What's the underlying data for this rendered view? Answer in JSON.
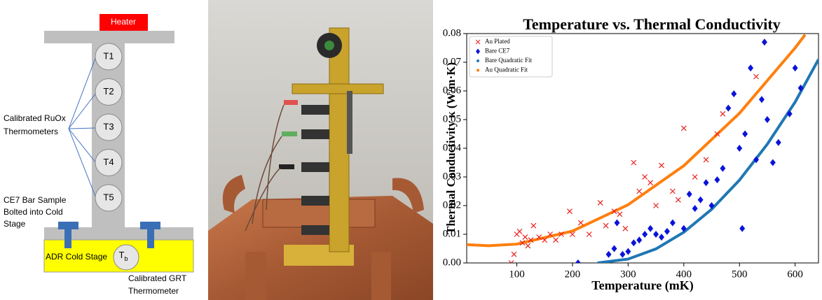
{
  "diagram": {
    "heater": "Heater",
    "thermometers": [
      "T1",
      "T2",
      "T3",
      "T4",
      "T5"
    ],
    "ruox_label": [
      "Calibrated RuOx",
      "Thermometers"
    ],
    "sample_label": [
      "CE7 Bar Sample",
      "Bolted into Cold",
      "Stage"
    ],
    "cold_stage": "ADR Cold Stage",
    "tb": {
      "label": "T",
      "subscript": "b"
    },
    "grt_label": [
      "Calibrated GRT",
      "Thermometer"
    ]
  },
  "chart_data": {
    "type": "scatter",
    "title": "Temperature vs. Thermal Conductivity",
    "x_label": "Temperature (mK)",
    "y_label": "Thermal Conductivity κ (W/m·K)",
    "xlim": [
      10,
      642
    ],
    "ylim": [
      0,
      0.08
    ],
    "xticks": [
      100,
      200,
      300,
      400,
      500,
      600
    ],
    "yticks": [
      {
        "value": 0,
        "label": "0.00"
      },
      {
        "value": 0.01,
        "label": "0.01"
      },
      {
        "value": 0.02,
        "label": "0.02"
      },
      {
        "value": 0.03,
        "label": "0.03"
      },
      {
        "value": 0.04,
        "label": "0.04"
      },
      {
        "value": 0.05,
        "label": "0.05"
      },
      {
        "value": 0.06,
        "label": "0.06"
      },
      {
        "value": 0.07,
        "label": "0.07"
      },
      {
        "value": 0.08,
        "label": "0.08"
      }
    ],
    "legend": "upper left",
    "series": [
      {
        "name": "Au Plated",
        "color": "#e8201c",
        "marker": "x",
        "x": [
          90,
          95,
          100,
          105,
          110,
          115,
          120,
          125,
          130,
          140,
          150,
          160,
          170,
          180,
          195,
          200,
          215,
          230,
          250,
          260,
          275,
          285,
          295,
          310,
          320,
          330,
          340,
          350,
          360,
          380,
          390,
          400,
          420,
          440,
          460,
          470,
          530
        ],
        "values": [
          0.0,
          0.003,
          0.01,
          0.011,
          0.007,
          0.009,
          0.006,
          0.008,
          0.013,
          0.009,
          0.008,
          0.01,
          0.008,
          0.01,
          0.018,
          0.01,
          0.014,
          0.01,
          0.021,
          0.013,
          0.018,
          0.017,
          0.012,
          0.035,
          0.025,
          0.03,
          0.028,
          0.02,
          0.034,
          0.025,
          0.022,
          0.047,
          0.03,
          0.036,
          0.045,
          0.052,
          0.065
        ]
      },
      {
        "name": "Bare CE7",
        "color": "#0a14d8",
        "marker": "diamond",
        "x": [
          210,
          265,
          275,
          280,
          290,
          300,
          310,
          320,
          330,
          340,
          350,
          360,
          370,
          380,
          400,
          410,
          420,
          430,
          440,
          450,
          460,
          470,
          480,
          490,
          500,
          505,
          510,
          520,
          530,
          540,
          545,
          550,
          560,
          570,
          590,
          600,
          610
        ],
        "values": [
          0.0,
          0.003,
          0.005,
          0.014,
          0.003,
          0.004,
          0.007,
          0.008,
          0.01,
          0.012,
          0.01,
          0.009,
          0.011,
          0.014,
          0.012,
          0.024,
          0.019,
          0.022,
          0.028,
          0.02,
          0.029,
          0.033,
          0.054,
          0.059,
          0.04,
          0.012,
          0.045,
          0.068,
          0.036,
          0.057,
          0.077,
          0.05,
          0.035,
          0.042,
          0.052,
          0.068,
          0.061
        ]
      },
      {
        "name": "Bare Quadratic Fit",
        "color": "#1f77b4",
        "marker": "line",
        "x": [
          245,
          300,
          350,
          400,
          450,
          500,
          550,
          600,
          642
        ],
        "values": [
          0,
          0.00135,
          0.0049,
          0.0107,
          0.0187,
          0.0289,
          0.0414,
          0.0561,
          0.071
        ]
      },
      {
        "name": "Au Quadratic Fit",
        "color": "#ff7f0e",
        "marker": "line",
        "x": [
          10,
          50,
          100,
          200,
          300,
          400,
          500,
          600,
          618
        ],
        "values": [
          0.00636,
          0.006,
          0.00657,
          0.0111,
          0.0203,
          0.0339,
          0.0522,
          0.075,
          0.0796
        ]
      }
    ]
  }
}
